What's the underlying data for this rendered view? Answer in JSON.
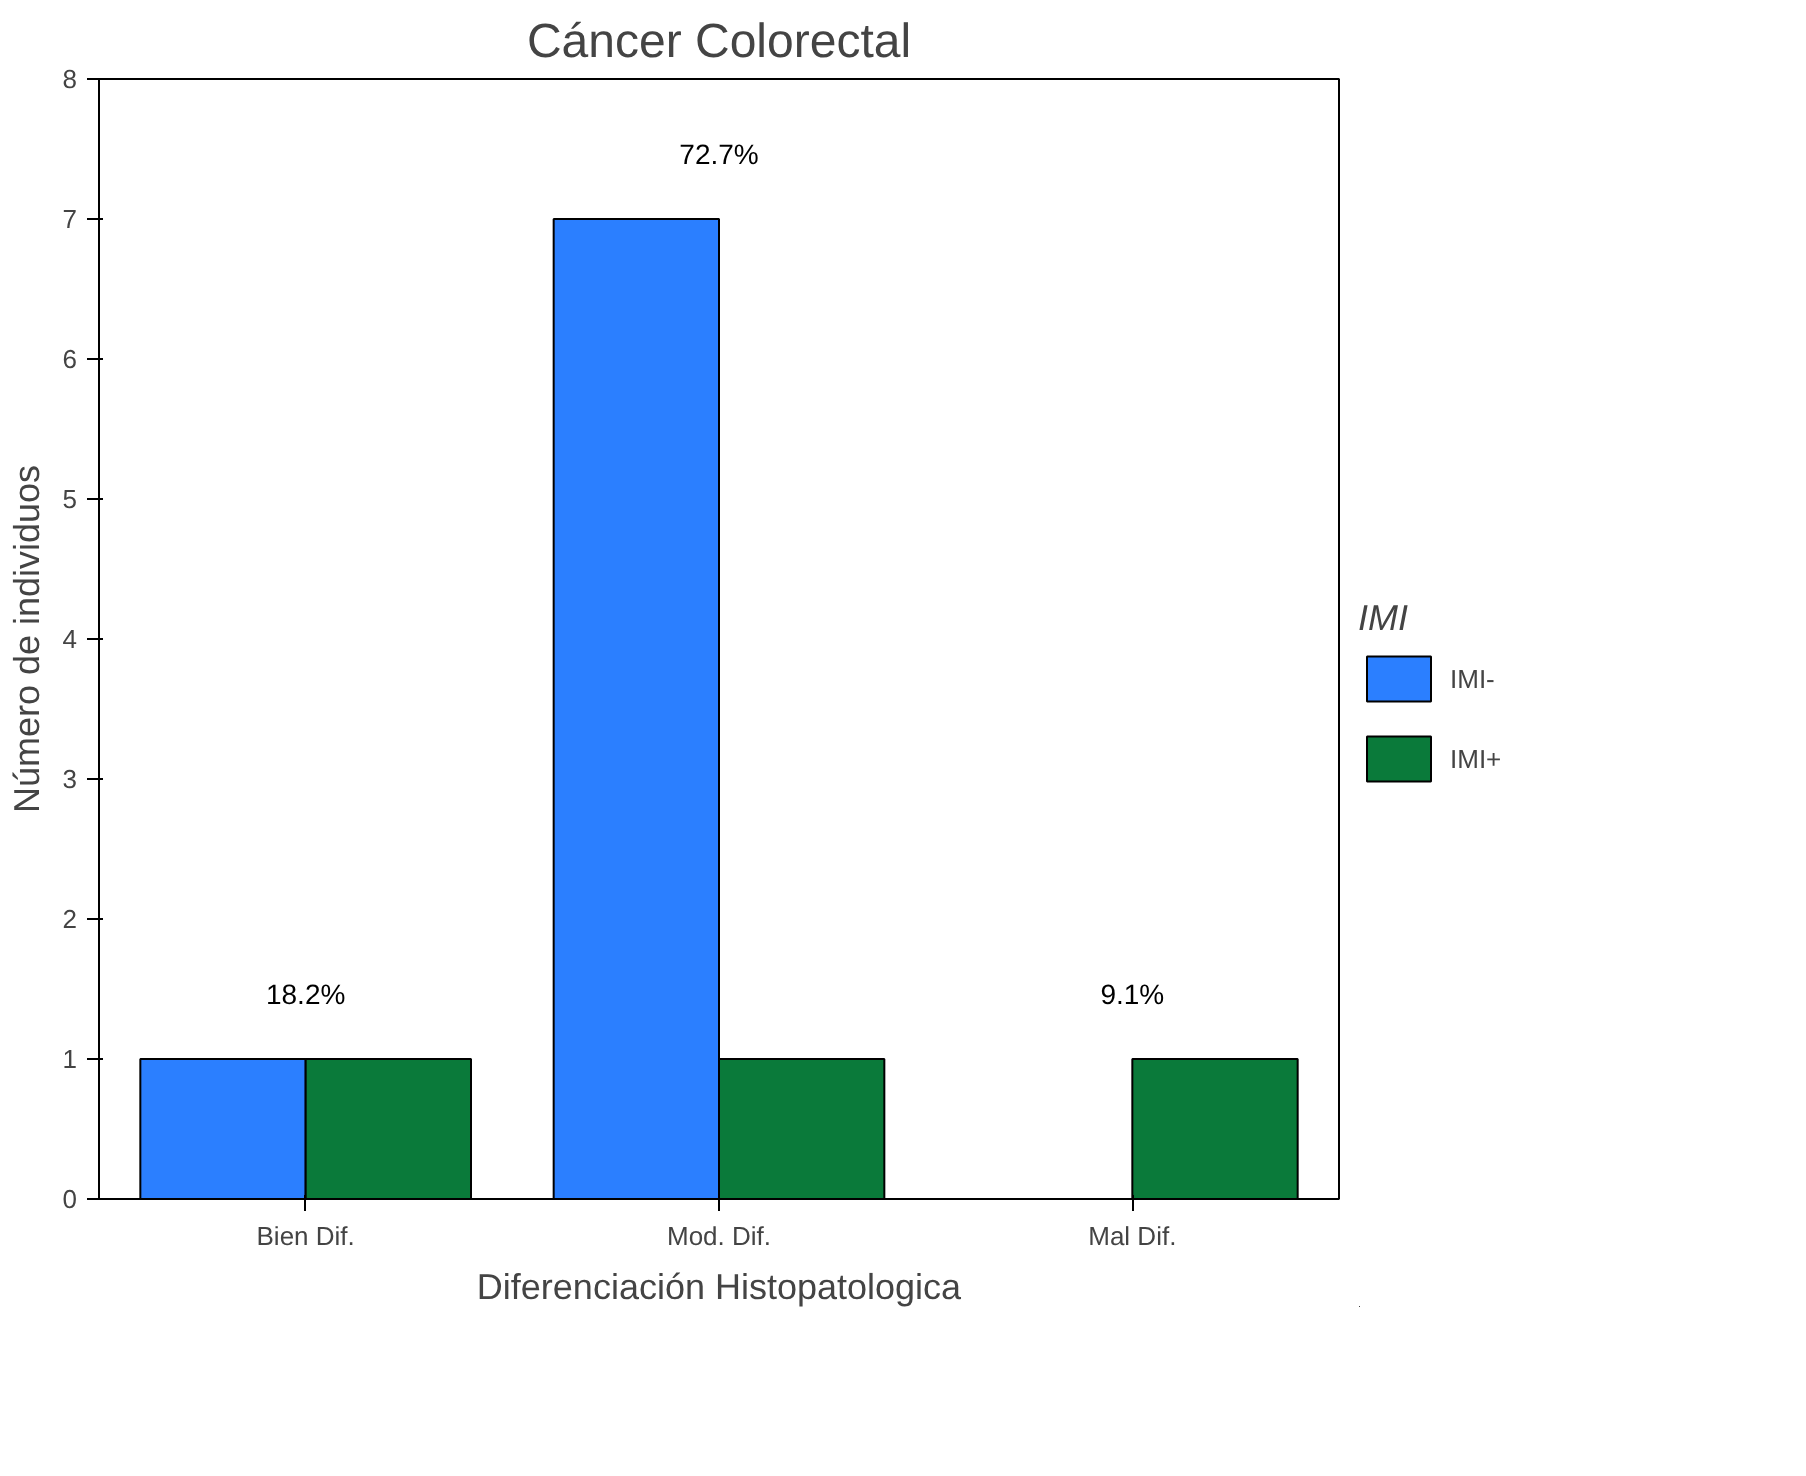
{
  "chart_data": {
    "type": "bar",
    "title": "Cáncer Colorectal",
    "xlabel": "Diferenciación Histopatologica",
    "ylabel": "Número de individuos",
    "legend_title": "IMI",
    "categories": [
      "Bien Dif.",
      "Mod. Dif.",
      "Mal Dif."
    ],
    "series": [
      {
        "name": "IMI-",
        "color": "#2b7fff",
        "values": [
          1,
          7,
          null
        ]
      },
      {
        "name": "IMI+",
        "color": "#0a7a3a",
        "values": [
          1,
          1,
          1
        ]
      }
    ],
    "annotations": [
      {
        "text": "18.2%",
        "x": "Bien Dif.",
        "y": 1
      },
      {
        "text": "72.7%",
        "x": "Mod. Dif.",
        "y": 7
      },
      {
        "text": "9.1%",
        "x": "Mal Dif.",
        "y": 1
      }
    ],
    "ylim": [
      0,
      8
    ],
    "yticks": [
      0,
      1,
      2,
      3,
      4,
      5,
      6,
      7,
      8
    ],
    "grid": false,
    "legend": "right"
  }
}
